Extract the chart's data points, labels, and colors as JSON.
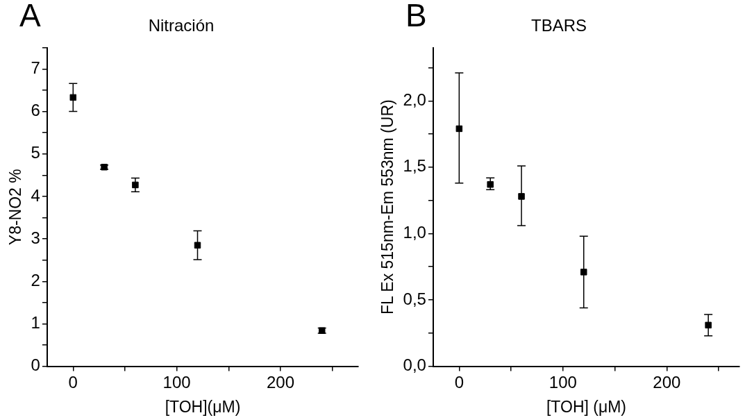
{
  "chart_data": [
    {
      "type": "scatter",
      "title": "Nitración",
      "annotations": [
        "A"
      ],
      "xlabel": "[TOH](μM)",
      "ylabel": "Y8-NO2 %",
      "marker": "square",
      "grid": false,
      "legend": false,
      "x": [
        0,
        30,
        60,
        120,
        240
      ],
      "series": [
        {
          "color": "#000000",
          "values": [
            6.33,
            4.69,
            4.27,
            2.85,
            0.84
          ],
          "errors": [
            0.33,
            0.05,
            0.16,
            0.34,
            0.06
          ]
        }
      ],
      "xlim": [
        -25,
        275
      ],
      "xticks": [
        0,
        {
          "value": 50,
          "label": null
        },
        100,
        {
          "value": 150,
          "label": null
        },
        200,
        {
          "value": 250,
          "label": null
        }
      ],
      "ylim": [
        0,
        7.5
      ],
      "yticks": [
        0,
        {
          "value": 0.5,
          "label": null
        },
        1,
        {
          "value": 1.5,
          "label": null
        },
        2,
        {
          "value": 2.5,
          "label": null
        },
        3,
        {
          "value": 3.5,
          "label": null
        },
        4,
        {
          "value": 4.5,
          "label": null
        },
        5,
        {
          "value": 5.5,
          "label": null
        },
        6,
        {
          "value": 6.5,
          "label": null
        },
        7,
        {
          "value": 7.5,
          "label": null
        }
      ]
    },
    {
      "type": "scatter",
      "title": "TBARS",
      "annotations": [
        "B"
      ],
      "xlabel": "[TOH] (μM)",
      "ylabel": "FL Ex 515nm-Em 553nm (UR)",
      "marker": "square",
      "grid": false,
      "legend": false,
      "x": [
        0,
        30,
        60,
        120,
        240
      ],
      "series": [
        {
          "color": "#000000",
          "values": [
            1.79,
            1.37,
            1.28,
            0.71,
            0.31
          ],
          "errors": [
            [
              1.38,
              2.21
            ],
            [
              1.33,
              1.42
            ],
            [
              1.06,
              1.51
            ],
            [
              0.44,
              0.98
            ],
            [
              0.23,
              0.39
            ]
          ]
        }
      ],
      "xlim": [
        -25,
        270
      ],
      "xticks": [
        0,
        {
          "value": 50,
          "label": null
        },
        100,
        {
          "value": 150,
          "label": null
        },
        200,
        {
          "value": 250,
          "label": null
        }
      ],
      "ylim": [
        0,
        2.4
      ],
      "yticks": [
        {
          "value": 0,
          "label": "0,0"
        },
        {
          "value": 0.25,
          "label": null
        },
        {
          "value": 0.5,
          "label": "0,5"
        },
        {
          "value": 0.75,
          "label": null
        },
        {
          "value": 1,
          "label": "1,0"
        },
        {
          "value": 1.25,
          "label": null
        },
        {
          "value": 1.5,
          "label": "1,5"
        },
        {
          "value": 1.75,
          "label": null
        },
        {
          "value": 2,
          "label": "2,0"
        },
        {
          "value": 2.25,
          "label": null
        }
      ]
    }
  ]
}
